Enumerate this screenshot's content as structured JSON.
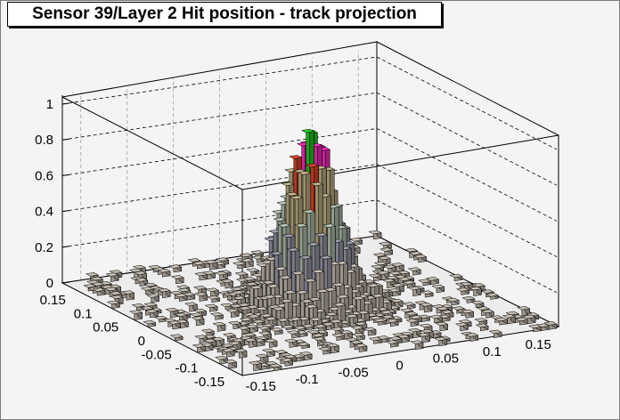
{
  "window": {
    "title": "Sensor 39/Layer 2 Hit position - track projection"
  },
  "chart_data": {
    "type": "lego3d",
    "title": "Sensor 39/Layer 2 Hit position - track projection",
    "xlabel": "",
    "ylabel": "",
    "zlabel": "",
    "xlim": [
      -0.17,
      0.17
    ],
    "ylim": [
      -0.17,
      0.17
    ],
    "zlim": [
      0,
      1.05
    ],
    "x_ticks": [
      "-0.15",
      "-0.1",
      "-0.05",
      "0",
      "0.05",
      "0.1",
      "0.15"
    ],
    "y_ticks": [
      "-0.15",
      "-0.1",
      "-0.05",
      "0",
      "0.05",
      "0.1",
      "0.15"
    ],
    "z_ticks": [
      "0",
      "0.2",
      "0.4",
      "0.6",
      "0.8",
      "1"
    ],
    "grid": true,
    "peak": {
      "x": 0.0,
      "y": 0.0,
      "value": 1.0
    },
    "distribution": "narrow peak centered near (0,0) with sparse low-level background hits",
    "colors": {
      "bar_main": "#c8bfb3",
      "level_0.3": "#9fa0ad",
      "level_0.5": "#b8c7b3",
      "level_0.7": "#c4b68a",
      "level_0.8": "#e8452a",
      "level_0.9": "#ff2cc5",
      "level_1.0": "#1fd21f"
    }
  }
}
